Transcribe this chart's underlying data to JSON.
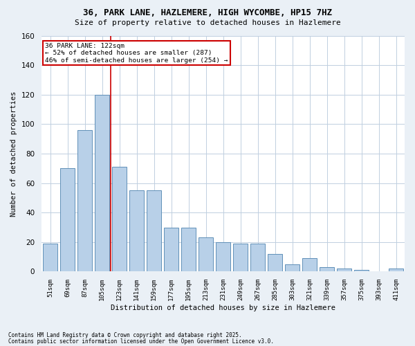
{
  "title1": "36, PARK LANE, HAZLEMERE, HIGH WYCOMBE, HP15 7HZ",
  "title2": "Size of property relative to detached houses in Hazlemere",
  "xlabel": "Distribution of detached houses by size in Hazlemere",
  "ylabel": "Number of detached properties",
  "categories": [
    "51sqm",
    "69sqm",
    "87sqm",
    "105sqm",
    "123sqm",
    "141sqm",
    "159sqm",
    "177sqm",
    "195sqm",
    "213sqm",
    "231sqm",
    "249sqm",
    "267sqm",
    "285sqm",
    "303sqm",
    "321sqm",
    "339sqm",
    "357sqm",
    "375sqm",
    "393sqm",
    "411sqm"
  ],
  "values": [
    19,
    70,
    96,
    120,
    71,
    55,
    55,
    30,
    30,
    23,
    20,
    19,
    19,
    12,
    5,
    9,
    3,
    2,
    1,
    0,
    2
  ],
  "bar_color": "#b8d0e8",
  "bar_edge_color": "#6090b8",
  "red_line_x": 3.5,
  "annotation_text": "36 PARK LANE: 122sqm\n← 52% of detached houses are smaller (287)\n46% of semi-detached houses are larger (254) →",
  "annotation_box_color": "#ffffff",
  "annotation_box_edge": "#cc0000",
  "red_line_color": "#cc0000",
  "ylim": [
    0,
    160
  ],
  "yticks": [
    0,
    20,
    40,
    60,
    80,
    100,
    120,
    140,
    160
  ],
  "footnote1": "Contains HM Land Registry data © Crown copyright and database right 2025.",
  "footnote2": "Contains public sector information licensed under the Open Government Licence v3.0.",
  "bg_color": "#eaf0f6",
  "plot_bg_color": "#ffffff",
  "grid_color": "#c0cfe0"
}
